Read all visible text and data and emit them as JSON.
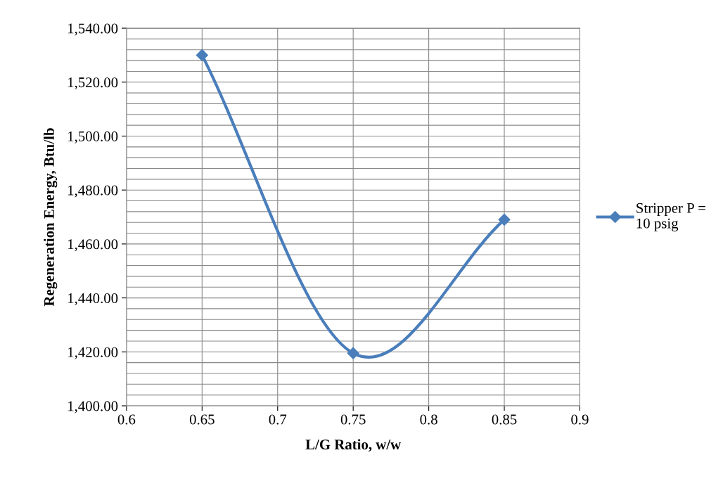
{
  "chart_data": {
    "type": "line",
    "xlabel": "L/G Ratio, w/w",
    "ylabel": "Regeneration Energy, Btu/lb",
    "series": [
      {
        "name": "Stripper P =\n10 psig",
        "color": "#4a7ebb",
        "x": [
          0.65,
          0.75,
          0.85
        ],
        "values": [
          1530,
          1419.5,
          1469
        ]
      }
    ],
    "xlim": [
      0.6,
      0.9
    ],
    "xticks": [
      0.6,
      0.65,
      0.7,
      0.75,
      0.8,
      0.85,
      0.9
    ],
    "ylim": [
      1400,
      1540
    ],
    "yticks": [
      {
        "value": 1400,
        "label": "1,400.00"
      },
      {
        "value": 1420,
        "label": "1,420.00"
      },
      {
        "value": 1440,
        "label": "1,440.00"
      },
      {
        "value": 1460,
        "label": "1,460.00"
      },
      {
        "value": 1480,
        "label": "1,480.00"
      },
      {
        "value": 1500,
        "label": "1,500.00"
      },
      {
        "value": 1520,
        "label": "1,520.00"
      },
      {
        "value": 1540,
        "label": "1,540.00"
      }
    ],
    "grid": true,
    "legend": "right",
    "marker": "diamond",
    "line_style": "solid"
  }
}
